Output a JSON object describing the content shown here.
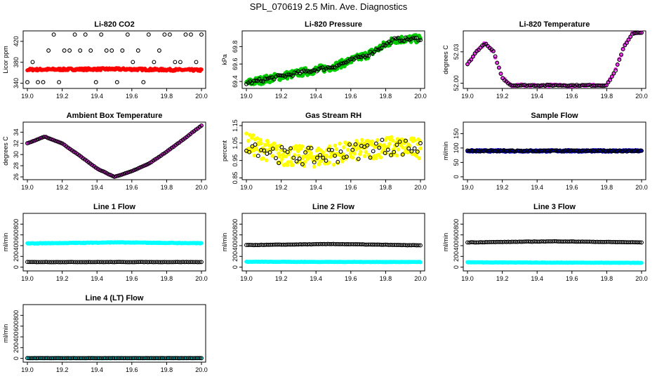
{
  "title": "SPL_070619  2.5 Min. Ave. Diagnostics",
  "colors": {
    "black": "#000000",
    "red": "#ff0000",
    "green": "#00cc00",
    "magenta": "#ff33ff",
    "yellow": "#ffff00",
    "blue": "#0000cc",
    "cyan": "#00ffff"
  },
  "chart_data": [
    {
      "type": "scatter",
      "title": "Li-820 CO2",
      "ylabel": "Licor ppm",
      "xlim": [
        19.0,
        20.0
      ],
      "ylim": [
        330,
        440
      ],
      "xticks": [
        "19.0",
        "19.2",
        "19.4",
        "19.6",
        "19.8",
        "20.0"
      ],
      "yticks": [
        {
          "v": 340,
          "t": "340"
        },
        {
          "v": 380,
          "t": "380"
        },
        {
          "v": 420,
          "t": "420"
        }
      ],
      "series": [
        {
          "name": "primary",
          "color": "#000000",
          "style": "co2",
          "x": [
            19.0,
            20.0
          ],
          "values": [
            340,
            433
          ]
        },
        {
          "name": "secondary",
          "color": "#ff0000",
          "style": "band",
          "x": [
            19.0,
            19.5,
            20.0
          ],
          "values": [
            366,
            367,
            365
          ],
          "noise": 2
        }
      ]
    },
    {
      "type": "scatter",
      "title": "Li-820 Pressure",
      "ylabel": "kPa",
      "xlim": [
        19.0,
        20.0
      ],
      "ylim": [
        69.32,
        69.98
      ],
      "xticks": [
        "19.0",
        "19.2",
        "19.4",
        "19.6",
        "19.8",
        "20.0"
      ],
      "yticks": [
        {
          "v": 69.4,
          "t": "69.4"
        },
        {
          "v": 69.6,
          "t": "69.6"
        },
        {
          "v": 69.8,
          "t": "69.8"
        }
      ],
      "series": [
        {
          "name": "secondary",
          "color": "#00cc00",
          "style": "band",
          "x": [
            19.0,
            19.2,
            19.5,
            19.7,
            19.85,
            20.0
          ],
          "values": [
            69.38,
            69.46,
            69.57,
            69.71,
            69.88,
            69.89
          ],
          "noise": 0.045
        },
        {
          "name": "primary",
          "color": "#000000",
          "style": "line",
          "x": [
            19.0,
            19.2,
            19.5,
            19.7,
            19.85,
            20.0
          ],
          "values": [
            69.38,
            69.46,
            69.57,
            69.71,
            69.88,
            69.89
          ],
          "noise": 0.02
        }
      ]
    },
    {
      "type": "scatter",
      "title": "Li-820 Temperature",
      "ylabel": "degrees C",
      "xlim": [
        19.0,
        20.0
      ],
      "ylim": [
        51.995,
        52.05
      ],
      "xticks": [
        "19.0",
        "19.2",
        "19.4",
        "19.6",
        "19.8",
        "20.0"
      ],
      "yticks": [
        {
          "v": 52.0,
          "t": "52.00"
        },
        {
          "v": 52.03,
          "t": "52.03"
        }
      ],
      "series": [
        {
          "name": "secondary",
          "color": "#ff33ff",
          "style": "line",
          "x": [
            19.0,
            19.05,
            19.1,
            19.15,
            19.2,
            19.25,
            19.8,
            19.85,
            19.9,
            19.95,
            20.0
          ],
          "values": [
            52.018,
            52.03,
            52.038,
            52.03,
            52.005,
            51.998,
            51.998,
            52.012,
            52.035,
            52.048,
            52.048
          ],
          "noise": 0.001
        },
        {
          "name": "primary",
          "color": "#000000",
          "style": "line",
          "x": [
            19.0,
            19.05,
            19.1,
            19.15,
            19.2,
            19.25,
            19.8,
            19.85,
            19.9,
            19.95,
            20.0
          ],
          "values": [
            52.018,
            52.03,
            52.038,
            52.03,
            52.005,
            51.998,
            51.998,
            52.012,
            52.035,
            52.048,
            52.048
          ],
          "noise": 0.0005
        }
      ]
    },
    {
      "type": "scatter",
      "title": "Ambient Box Temperature",
      "ylabel": "degrees C",
      "xlim": [
        19.0,
        20.0
      ],
      "ylim": [
        25.5,
        35.8
      ],
      "xticks": [
        "19.0",
        "19.2",
        "19.4",
        "19.6",
        "19.8",
        "20.0"
      ],
      "yticks": [
        {
          "v": 26,
          "t": "26"
        },
        {
          "v": 28,
          "t": "28"
        },
        {
          "v": 30,
          "t": "30"
        },
        {
          "v": 32,
          "t": "32"
        },
        {
          "v": 34,
          "t": "34"
        }
      ],
      "series": [
        {
          "name": "secondary",
          "color": "#ff33ff",
          "style": "line",
          "x": [
            19.0,
            19.1,
            19.2,
            19.3,
            19.4,
            19.5,
            19.6,
            19.7,
            19.8,
            19.9,
            20.0
          ],
          "values": [
            32.0,
            33.2,
            32.0,
            29.8,
            27.5,
            26.0,
            27.0,
            28.4,
            30.5,
            32.8,
            35.2
          ],
          "noise": 0.05
        },
        {
          "name": "primary",
          "color": "#000000",
          "style": "line",
          "x": [
            19.0,
            19.1,
            19.2,
            19.3,
            19.4,
            19.5,
            19.6,
            19.7,
            19.8,
            19.9,
            20.0
          ],
          "values": [
            32.0,
            33.2,
            32.0,
            29.8,
            27.5,
            26.0,
            27.0,
            28.4,
            30.5,
            32.8,
            35.2
          ],
          "noise": 0.03
        }
      ]
    },
    {
      "type": "scatter",
      "title": "Gas Stream RH",
      "ylabel": "percent",
      "xlim": [
        19.0,
        20.0
      ],
      "ylim": [
        0.84,
        1.17
      ],
      "xticks": [
        "19.0",
        "19.2",
        "19.4",
        "19.6",
        "19.8",
        "20.0"
      ],
      "yticks": [
        {
          "v": 0.85,
          "t": "0.85"
        },
        {
          "v": 0.95,
          "t": "0.95"
        },
        {
          "v": 1.05,
          "t": "1.05"
        },
        {
          "v": 1.15,
          "t": "1.15"
        }
      ],
      "series": [
        {
          "name": "secondary",
          "color": "#ffff00",
          "style": "band",
          "x": [
            19.0,
            19.2,
            19.4,
            19.6,
            19.8,
            20.0
          ],
          "values": [
            1.05,
            0.98,
            0.97,
            1.0,
            1.03,
            1.02
          ],
          "noise": 0.06
        },
        {
          "name": "primary",
          "color": "#000000",
          "style": "sparse",
          "x": [
            19.0,
            19.2,
            19.4,
            19.6,
            19.8,
            20.0
          ],
          "values": [
            1.05,
            0.98,
            0.97,
            1.0,
            1.03,
            1.02
          ],
          "noise": 0.05
        }
      ]
    },
    {
      "type": "scatter",
      "title": "Sample Flow",
      "ylabel": "ml/min",
      "xlim": [
        19.0,
        20.0
      ],
      "ylim": [
        -10,
        190
      ],
      "xticks": [
        "19.0",
        "19.2",
        "19.4",
        "19.6",
        "19.8",
        "20.0"
      ],
      "yticks": [
        {
          "v": 0,
          "t": "0"
        },
        {
          "v": 50,
          "t": "50"
        },
        {
          "v": 100,
          "t": "100"
        },
        {
          "v": 150,
          "t": "150"
        }
      ],
      "series": [
        {
          "name": "secondary",
          "color": "#0000cc",
          "style": "band",
          "x": [
            19.0,
            20.0
          ],
          "values": [
            90,
            90
          ],
          "noise": 3
        },
        {
          "name": "primary",
          "color": "#000000",
          "style": "line",
          "x": [
            19.0,
            20.0
          ],
          "values": [
            90,
            90
          ],
          "noise": 2
        }
      ]
    },
    {
      "type": "scatter",
      "title": "Line 1 Flow",
      "ylabel": "ml/min",
      "xlim": [
        19.0,
        20.0
      ],
      "ylim": [
        -70,
        1000
      ],
      "xticks": [
        "19.0",
        "19.2",
        "19.4",
        "19.6",
        "19.8",
        "20.0"
      ],
      "yticks": [
        {
          "v": 0,
          "t": "0"
        },
        {
          "v": 200,
          "t": "200"
        },
        {
          "v": 400,
          "t": "400"
        },
        {
          "v": 600,
          "t": "600"
        },
        {
          "v": 800,
          "t": "800"
        }
      ],
      "series": [
        {
          "name": "secondary",
          "color": "#00ffff",
          "style": "band",
          "x": [
            19.0,
            19.5,
            20.0
          ],
          "values": [
            440,
            460,
            445
          ],
          "noise": 6
        },
        {
          "name": "primary",
          "color": "#000000",
          "style": "line",
          "x": [
            19.0,
            20.0
          ],
          "values": [
            95,
            95
          ],
          "noise": 2
        }
      ]
    },
    {
      "type": "scatter",
      "title": "Line 2 Flow",
      "ylabel": "ml/min",
      "xlim": [
        19.0,
        20.0
      ],
      "ylim": [
        -70,
        1000
      ],
      "xticks": [
        "19.0",
        "19.2",
        "19.4",
        "19.6",
        "19.8",
        "20.0"
      ],
      "yticks": [
        {
          "v": 0,
          "t": "0"
        },
        {
          "v": 200,
          "t": "200"
        },
        {
          "v": 400,
          "t": "400"
        },
        {
          "v": 600,
          "t": "600"
        },
        {
          "v": 800,
          "t": "800"
        }
      ],
      "series": [
        {
          "name": "secondary",
          "color": "#00ffff",
          "style": "band",
          "x": [
            19.0,
            20.0
          ],
          "values": [
            100,
            95
          ],
          "noise": 4
        },
        {
          "name": "primary",
          "color": "#000000",
          "style": "line",
          "x": [
            19.0,
            19.5,
            20.0
          ],
          "values": [
            410,
            430,
            405
          ],
          "noise": 3
        }
      ]
    },
    {
      "type": "scatter",
      "title": "Line 3 Flow",
      "ylabel": "ml/min",
      "xlim": [
        19.0,
        20.0
      ],
      "ylim": [
        -70,
        1000
      ],
      "xticks": [
        "19.0",
        "19.2",
        "19.4",
        "19.6",
        "19.8",
        "20.0"
      ],
      "yticks": [
        {
          "v": 0,
          "t": "0"
        },
        {
          "v": 200,
          "t": "200"
        },
        {
          "v": 400,
          "t": "400"
        },
        {
          "v": 600,
          "t": "600"
        },
        {
          "v": 800,
          "t": "800"
        }
      ],
      "series": [
        {
          "name": "secondary",
          "color": "#00ffff",
          "style": "band",
          "x": [
            19.0,
            20.0
          ],
          "values": [
            90,
            80
          ],
          "noise": 4
        },
        {
          "name": "primary",
          "color": "#000000",
          "style": "line",
          "x": [
            19.0,
            19.5,
            20.0
          ],
          "values": [
            460,
            480,
            460
          ],
          "noise": 3
        }
      ]
    },
    {
      "type": "scatter",
      "title": "Line 4 (LT) Flow",
      "ylabel": "ml/min",
      "xlim": [
        19.0,
        20.0
      ],
      "ylim": [
        -70,
        1000
      ],
      "xticks": [
        "19.0",
        "19.2",
        "19.4",
        "19.6",
        "19.8",
        "20.0"
      ],
      "yticks": [
        {
          "v": 0,
          "t": "0"
        },
        {
          "v": 200,
          "t": "200"
        },
        {
          "v": 400,
          "t": "400"
        },
        {
          "v": 600,
          "t": "600"
        },
        {
          "v": 800,
          "t": "800"
        }
      ],
      "series": [
        {
          "name": "secondary",
          "color": "#00ffff",
          "style": "band",
          "x": [
            19.0,
            20.0
          ],
          "values": [
            5,
            5
          ],
          "noise": 3
        },
        {
          "name": "primary",
          "color": "#000000",
          "style": "line",
          "x": [
            19.0,
            20.0
          ],
          "values": [
            5,
            5
          ],
          "noise": 1
        }
      ]
    }
  ]
}
